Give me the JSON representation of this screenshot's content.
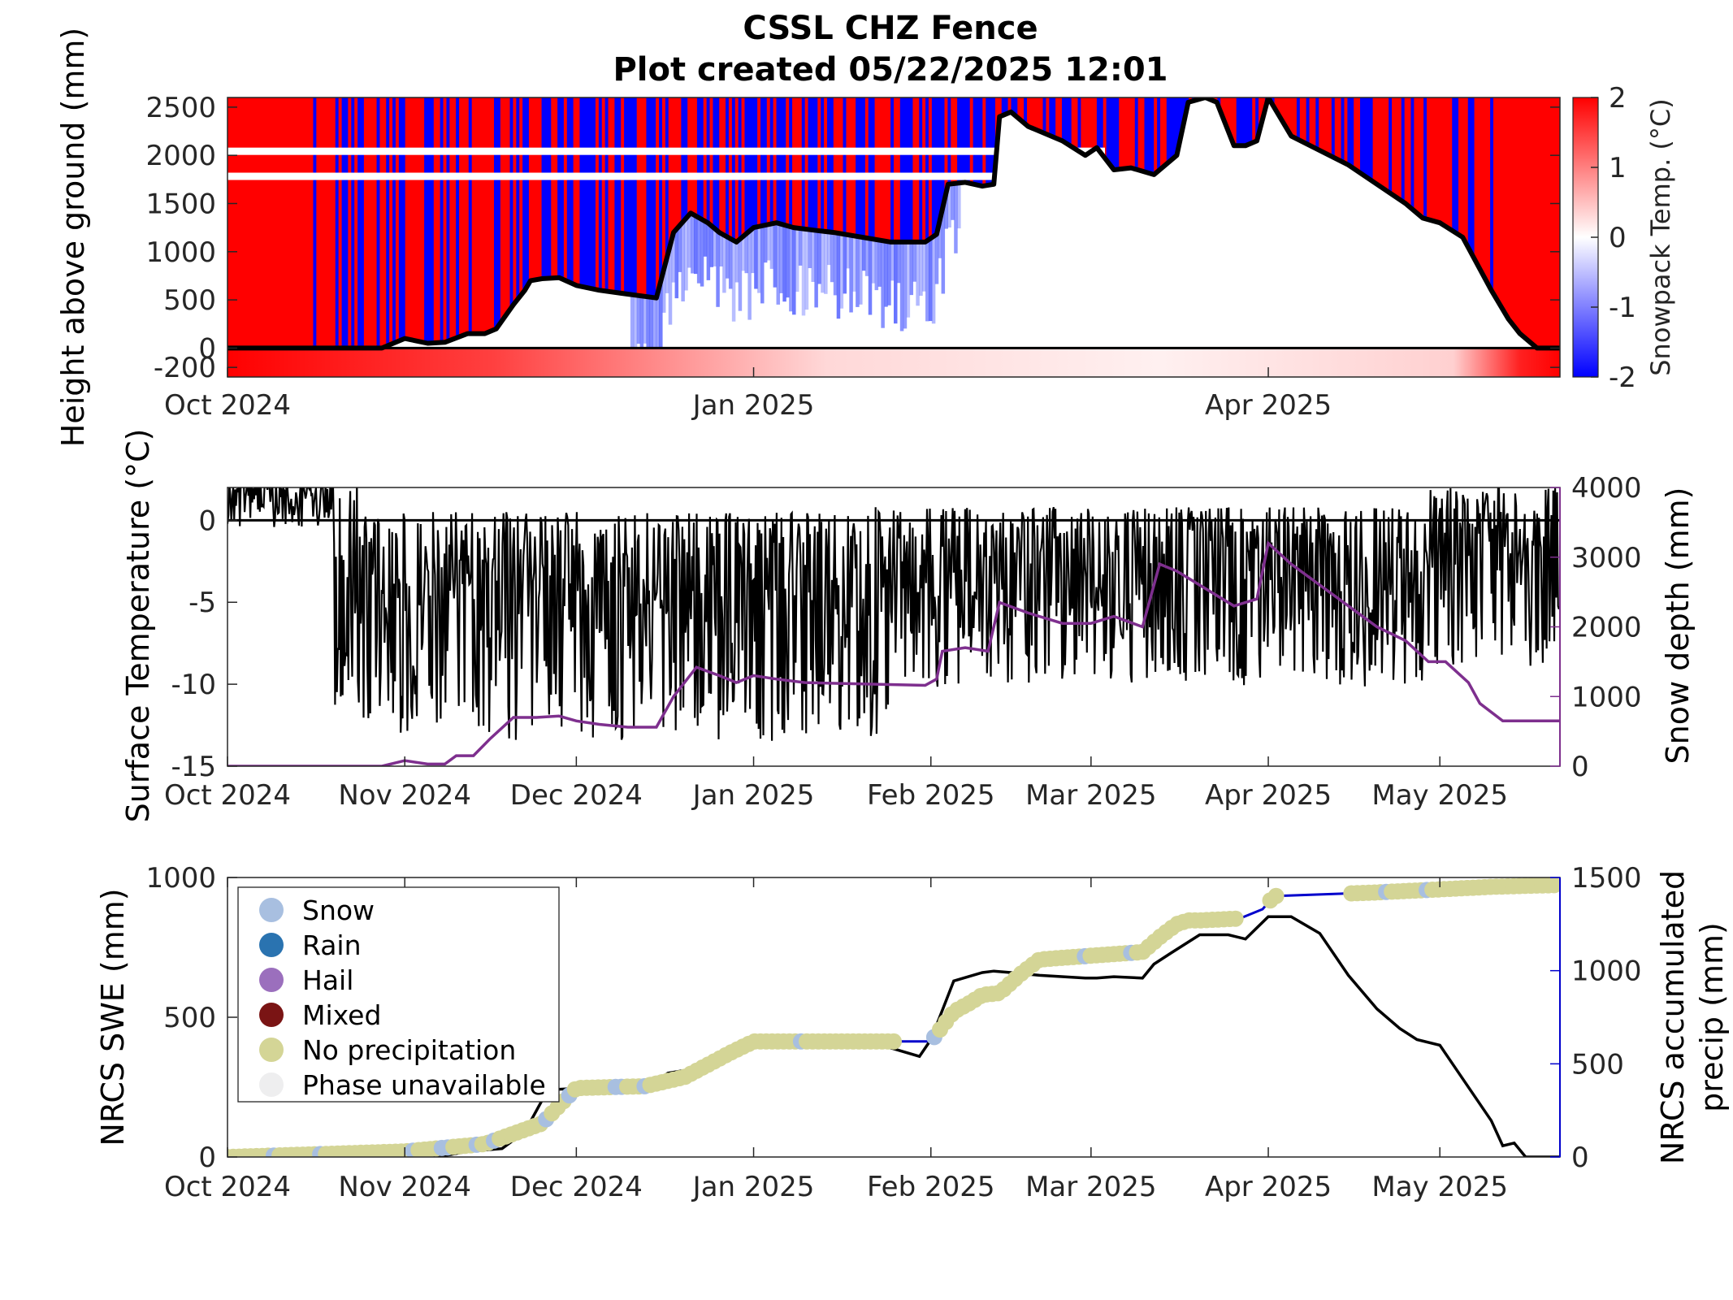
{
  "title": {
    "line1": "CSSL CHZ Fence",
    "line2": "Plot created 05/22/2025 12:01"
  },
  "colors": {
    "warm": "#ff0000",
    "cold": "#0000ff",
    "zero": "#ffffff",
    "depth_line": "#000000",
    "surface_temp": "#000000",
    "snow_depth": "#7e2f8e",
    "swe": "#000000",
    "precip": "#0000cc",
    "axis_right_blue": "#0000cc"
  },
  "chart_data": [
    {
      "type": "heatmap",
      "id": "snowpack",
      "ylabel": "Height above ground (mm)",
      "colorbar_label": "Snowpack Temp. (°C)",
      "colorbar_ticks": [
        "2",
        "1",
        "0",
        "-1",
        "-2"
      ],
      "clim": [
        -2,
        2
      ],
      "colormap": "red-white-blue",
      "ylim": [
        -300,
        2600
      ],
      "yticks": [
        -200,
        0,
        500,
        1000,
        1500,
        2000,
        2500
      ],
      "ytick_labels": [
        "-200",
        "0",
        "500",
        "1000",
        "1500",
        "2000",
        "2500"
      ],
      "xlim": [
        "2024-10-01",
        "2025-05-22"
      ],
      "xticks": [
        "2024-10-01",
        "2025-01-01",
        "2025-04-01"
      ],
      "xtick_labels": [
        "Oct 2024",
        "Jan 2025",
        "Apr 2025"
      ],
      "snow_depth_line": {
        "x": [
          "2024-10-01",
          "2024-10-28",
          "2024-11-01",
          "2024-11-05",
          "2024-11-08",
          "2024-11-12",
          "2024-11-15",
          "2024-11-17",
          "2024-11-20",
          "2024-11-22",
          "2024-11-23",
          "2024-11-25",
          "2024-11-28",
          "2024-12-01",
          "2024-12-05",
          "2024-12-10",
          "2024-12-15",
          "2024-12-18",
          "2024-12-21",
          "2024-12-24",
          "2024-12-26",
          "2024-12-29",
          "2025-01-01",
          "2025-01-05",
          "2025-01-08",
          "2025-01-12",
          "2025-01-15",
          "2025-01-20",
          "2025-01-25",
          "2025-01-31",
          "2025-02-02",
          "2025-02-04",
          "2025-02-07",
          "2025-02-10",
          "2025-02-12",
          "2025-02-13",
          "2025-02-15",
          "2025-02-18",
          "2025-02-20",
          "2025-02-24",
          "2025-02-28",
          "2025-03-02",
          "2025-03-05",
          "2025-03-08",
          "2025-03-12",
          "2025-03-16",
          "2025-03-18",
          "2025-03-21",
          "2025-03-23",
          "2025-03-26",
          "2025-03-28",
          "2025-03-30",
          "2025-04-01",
          "2025-04-05",
          "2025-04-10",
          "2025-04-15",
          "2025-04-20",
          "2025-04-25",
          "2025-04-28",
          "2025-05-01",
          "2025-05-05",
          "2025-05-10",
          "2025-05-13",
          "2025-05-15",
          "2025-05-18",
          "2025-05-22"
        ],
        "y": [
          0,
          0,
          100,
          50,
          60,
          150,
          150,
          200,
          450,
          600,
          700,
          720,
          730,
          650,
          600,
          560,
          520,
          1200,
          1400,
          1300,
          1200,
          1100,
          1250,
          1300,
          1250,
          1220,
          1200,
          1150,
          1100,
          1100,
          1180,
          1700,
          1720,
          1680,
          1700,
          2400,
          2450,
          2300,
          2250,
          2150,
          2000,
          2080,
          1850,
          1870,
          1800,
          2000,
          2550,
          2600,
          2550,
          2100,
          2100,
          2150,
          2600,
          2200,
          2050,
          1900,
          1700,
          1500,
          1350,
          1300,
          1150,
          600,
          300,
          150,
          0,
          0
        ]
      }
    },
    {
      "type": "line",
      "id": "surface_temp",
      "ylabel_left": "Surface Temperature (°C)",
      "ylabel_right": "Snow depth (mm)",
      "ylim_left": [
        -15,
        2
      ],
      "yticks_left": [
        "0",
        "-5",
        "-10",
        "-15"
      ],
      "ylim_right": [
        0,
        4000
      ],
      "yticks_right": [
        "4000",
        "3000",
        "2000",
        "1000",
        "0"
      ],
      "xlim": [
        "2024-10-01",
        "2025-05-22"
      ],
      "xticks": [
        "2024-10-01",
        "2024-11-01",
        "2024-12-01",
        "2025-01-01",
        "2025-02-01",
        "2025-03-01",
        "2025-04-01",
        "2025-05-01"
      ],
      "xtick_labels": [
        "Oct 2024",
        "Nov 2024",
        "Dec 2024",
        "Jan 2025",
        "Feb 2025",
        "Mar 2025",
        "Apr 2025",
        "May 2025"
      ],
      "series": [
        {
          "axis": "right",
          "x": [
            "2024-10-01",
            "2024-10-28",
            "2024-11-01",
            "2024-11-05",
            "2024-11-08",
            "2024-11-10",
            "2024-11-13",
            "2024-11-16",
            "2024-11-20",
            "2024-11-24",
            "2024-11-28",
            "2024-12-01",
            "2024-12-05",
            "2024-12-10",
            "2024-12-15",
            "2024-12-18",
            "2024-12-22",
            "2024-12-26",
            "2024-12-29",
            "2025-01-01",
            "2025-01-05",
            "2025-01-10",
            "2025-01-20",
            "2025-01-31",
            "2025-02-02",
            "2025-02-03",
            "2025-02-07",
            "2025-02-11",
            "2025-02-13",
            "2025-02-18",
            "2025-02-24",
            "2025-03-01",
            "2025-03-05",
            "2025-03-10",
            "2025-03-12",
            "2025-03-13",
            "2025-03-16",
            "2025-03-18",
            "2025-03-22",
            "2025-03-26",
            "2025-03-30",
            "2025-04-01",
            "2025-04-05",
            "2025-04-10",
            "2025-04-15",
            "2025-04-20",
            "2025-04-25",
            "2025-04-29",
            "2025-05-02",
            "2025-05-06",
            "2025-05-08",
            "2025-05-12",
            "2025-05-16",
            "2025-05-22"
          ],
          "values": [
            0,
            0,
            80,
            30,
            30,
            150,
            150,
            400,
            700,
            700,
            720,
            650,
            600,
            560,
            560,
            1000,
            1420,
            1300,
            1200,
            1300,
            1250,
            1200,
            1180,
            1160,
            1250,
            1650,
            1700,
            1650,
            2350,
            2200,
            2050,
            2050,
            2150,
            2000,
            2600,
            2900,
            2800,
            2700,
            2500,
            2300,
            2400,
            3200,
            2900,
            2600,
            2300,
            2000,
            1800,
            1500,
            1500,
            1200,
            900,
            650,
            650,
            650
          ]
        }
      ]
    },
    {
      "type": "line",
      "id": "swe_precip",
      "ylabel_left": "NRCS SWE (mm)",
      "ylabel_right_line1": "NRCS accumulated",
      "ylabel_right_line2": "precip (mm)",
      "ylim_left": [
        0,
        1000
      ],
      "yticks_left": [
        "1000",
        "500",
        "0"
      ],
      "ylim_right": [
        0,
        1500
      ],
      "yticks_right": [
        "1500",
        "1000",
        "500",
        "0"
      ],
      "xlim": [
        "2024-10-01",
        "2025-05-22"
      ],
      "xticks": [
        "2024-10-01",
        "2024-11-01",
        "2024-12-01",
        "2025-01-01",
        "2025-02-01",
        "2025-03-01",
        "2025-04-01",
        "2025-05-01"
      ],
      "xtick_labels": [
        "Oct 2024",
        "Nov 2024",
        "Dec 2024",
        "Jan 2025",
        "Feb 2025",
        "Mar 2025",
        "Apr 2025",
        "May 2025"
      ],
      "legend": {
        "position": "upper-left",
        "entries": [
          {
            "label": "Snow",
            "color": "#a8bfe0"
          },
          {
            "label": "Rain",
            "color": "#2a73b0"
          },
          {
            "label": "Hail",
            "color": "#9b6fbd"
          },
          {
            "label": "Mixed",
            "color": "#7a1414"
          },
          {
            "label": "No precipitation",
            "color": "#d4d596"
          },
          {
            "label": "Phase unavailable",
            "color": "#eeeeef"
          }
        ]
      },
      "series": [
        {
          "name": "SWE",
          "axis": "left",
          "x": [
            "2024-10-01",
            "2024-11-01",
            "2024-11-08",
            "2024-11-12",
            "2024-11-18",
            "2024-11-22",
            "2024-11-26",
            "2024-12-05",
            "2024-12-10",
            "2024-12-14",
            "2024-12-17",
            "2024-12-20",
            "2024-12-24",
            "2024-12-28",
            "2025-01-01",
            "2025-01-10",
            "2025-01-20",
            "2025-01-25",
            "2025-01-30",
            "2025-02-01",
            "2025-02-05",
            "2025-02-10",
            "2025-02-12",
            "2025-02-15",
            "2025-02-20",
            "2025-02-28",
            "2025-03-02",
            "2025-03-05",
            "2025-03-10",
            "2025-03-12",
            "2025-03-15",
            "2025-03-20",
            "2025-03-25",
            "2025-03-28",
            "2025-04-01",
            "2025-04-05",
            "2025-04-10",
            "2025-04-15",
            "2025-04-20",
            "2025-04-24",
            "2025-04-27",
            "2025-05-01",
            "2025-05-05",
            "2025-05-10",
            "2025-05-12",
            "2025-05-14",
            "2025-05-16",
            "2025-05-22"
          ],
          "values": [
            0,
            0,
            5,
            20,
            30,
            90,
            240,
            250,
            250,
            255,
            300,
            310,
            320,
            370,
            410,
            410,
            400,
            390,
            360,
            420,
            630,
            660,
            665,
            660,
            650,
            640,
            640,
            645,
            640,
            690,
            730,
            795,
            795,
            780,
            860,
            860,
            800,
            650,
            530,
            460,
            420,
            400,
            280,
            130,
            40,
            50,
            0,
            0
          ]
        },
        {
          "name": "Accumulated precip",
          "axis": "right",
          "x": [
            "2024-10-01",
            "2024-11-01",
            "2024-11-15",
            "2024-11-25",
            "2024-12-01",
            "2024-12-13",
            "2024-12-20",
            "2024-12-28",
            "2025-01-01",
            "2025-02-01",
            "2025-02-03",
            "2025-02-05",
            "2025-02-08",
            "2025-02-10",
            "2025-02-13",
            "2025-02-17",
            "2025-02-20",
            "2025-03-10",
            "2025-03-13",
            "2025-03-16",
            "2025-03-18",
            "2025-03-20",
            "2025-03-27",
            "2025-03-31",
            "2025-04-02",
            "2025-04-20",
            "2025-05-10",
            "2025-05-22"
          ],
          "values": [
            0,
            30,
            70,
            180,
            370,
            380,
            430,
            560,
            620,
            620,
            700,
            780,
            830,
            870,
            880,
            990,
            1060,
            1100,
            1180,
            1250,
            1270,
            1270,
            1280,
            1330,
            1400,
            1420,
            1450,
            1460
          ]
        }
      ]
    }
  ]
}
